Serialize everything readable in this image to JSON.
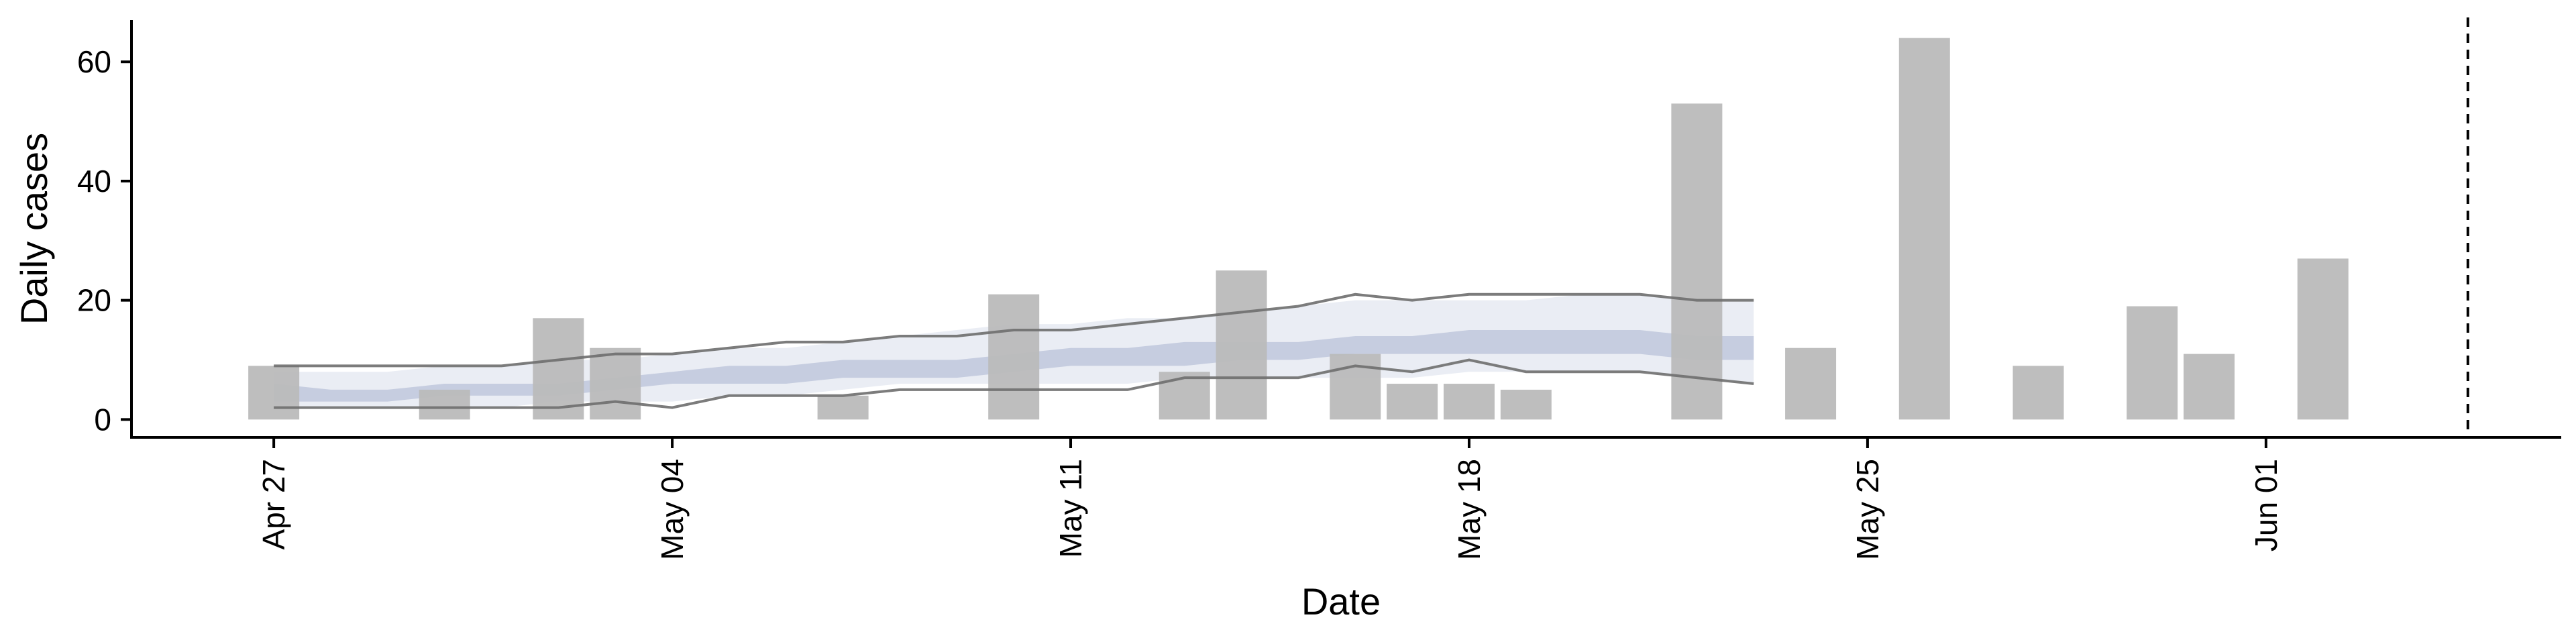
{
  "chart_data": {
    "type": "bar",
    "title": "",
    "xlabel": "Date",
    "ylabel": "Daily cases",
    "ylim": [
      -3,
      67
    ],
    "yticks": [
      0,
      20,
      40,
      60
    ],
    "x_range": [
      "2020-04-25",
      "2020-06-08"
    ],
    "xticks": [
      {
        "date": "2020-04-27",
        "label": "Apr 27"
      },
      {
        "date": "2020-05-04",
        "label": "May 04"
      },
      {
        "date": "2020-05-11",
        "label": "May 11"
      },
      {
        "date": "2020-05-18",
        "label": "May 18"
      },
      {
        "date": "2020-05-25",
        "label": "May 25"
      },
      {
        "date": "2020-06-01",
        "label": "Jun 01"
      }
    ],
    "grid": false,
    "legend": "none",
    "bars": {
      "name": "Daily cases",
      "color": "#bababa",
      "dates": [
        "2020-04-27",
        "2020-04-30",
        "2020-05-02",
        "2020-05-03",
        "2020-05-07",
        "2020-05-10",
        "2020-05-13",
        "2020-05-14",
        "2020-05-16",
        "2020-05-17",
        "2020-05-18",
        "2020-05-19",
        "2020-05-22",
        "2020-05-24",
        "2020-05-26",
        "2020-05-28",
        "2020-05-30",
        "2020-05-31",
        "2020-06-02"
      ],
      "values": [
        9,
        5,
        17,
        12,
        4,
        21,
        8,
        25,
        11,
        6,
        6,
        5,
        53,
        12,
        64,
        9,
        19,
        11,
        27
      ]
    },
    "estimate": {
      "dates": [
        "2020-04-27",
        "2020-04-28",
        "2020-04-29",
        "2020-04-30",
        "2020-05-01",
        "2020-05-02",
        "2020-05-03",
        "2020-05-04",
        "2020-05-05",
        "2020-05-06",
        "2020-05-07",
        "2020-05-08",
        "2020-05-09",
        "2020-05-10",
        "2020-05-11",
        "2020-05-12",
        "2020-05-13",
        "2020-05-14",
        "2020-05-15",
        "2020-05-16",
        "2020-05-17",
        "2020-05-18",
        "2020-05-19",
        "2020-05-20",
        "2020-05-21",
        "2020-05-22",
        "2020-05-23"
      ],
      "outer_lower": [
        2,
        2,
        2,
        2,
        2,
        3,
        3,
        3,
        4,
        4,
        5,
        6,
        6,
        6,
        6,
        6,
        7,
        7,
        7,
        7,
        7,
        8,
        8,
        8,
        8,
        7,
        6
      ],
      "outer_upper": [
        8,
        8,
        8,
        9,
        9,
        10,
        10,
        11,
        12,
        12,
        13,
        14,
        15,
        16,
        16,
        17,
        17,
        18,
        19,
        20,
        20,
        20,
        20,
        21,
        21,
        20,
        20
      ],
      "inner_lower": [
        3,
        3,
        3,
        4,
        4,
        4,
        5,
        6,
        6,
        6,
        7,
        7,
        7,
        8,
        9,
        9,
        9,
        10,
        10,
        11,
        11,
        11,
        11,
        11,
        11,
        10,
        10
      ],
      "inner_upper": [
        6,
        5,
        5,
        6,
        6,
        6,
        7,
        8,
        9,
        9,
        10,
        10,
        10,
        11,
        12,
        12,
        13,
        13,
        13,
        14,
        14,
        15,
        15,
        15,
        15,
        14,
        14
      ],
      "outer_color": "#dfe3ee",
      "inner_color": "#aeb8d2"
    },
    "range_lines": {
      "color": "#6e6e6e",
      "upper": {
        "dates": [
          "2020-04-27",
          "2020-04-28",
          "2020-04-29",
          "2020-04-30",
          "2020-05-01",
          "2020-05-02",
          "2020-05-03",
          "2020-05-04",
          "2020-05-05",
          "2020-05-06",
          "2020-05-07",
          "2020-05-08",
          "2020-05-09",
          "2020-05-10",
          "2020-05-11",
          "2020-05-12",
          "2020-05-13",
          "2020-05-14",
          "2020-05-15",
          "2020-05-16",
          "2020-05-17",
          "2020-05-18",
          "2020-05-19",
          "2020-05-20",
          "2020-05-21",
          "2020-05-22",
          "2020-05-23"
        ],
        "values": [
          9,
          9,
          9,
          9,
          9,
          10,
          11,
          11,
          12,
          13,
          13,
          14,
          14,
          15,
          15,
          16,
          17,
          18,
          19,
          21,
          20,
          21,
          21,
          21,
          21,
          20,
          20
        ]
      },
      "lower": {
        "dates": [
          "2020-04-27",
          "2020-04-28",
          "2020-04-29",
          "2020-04-30",
          "2020-05-01",
          "2020-05-02",
          "2020-05-03",
          "2020-05-04",
          "2020-05-05",
          "2020-05-06",
          "2020-05-07",
          "2020-05-08",
          "2020-05-09",
          "2020-05-10",
          "2020-05-11",
          "2020-05-12",
          "2020-05-13",
          "2020-05-14",
          "2020-05-15",
          "2020-05-16",
          "2020-05-17",
          "2020-05-18",
          "2020-05-19",
          "2020-05-20",
          "2020-05-21",
          "2020-05-22",
          "2020-05-23"
        ],
        "values": [
          2,
          2,
          2,
          2,
          2,
          2,
          3,
          2,
          4,
          4,
          4,
          5,
          5,
          5,
          5,
          5,
          7,
          7,
          7,
          9,
          8,
          10,
          8,
          8,
          8,
          7,
          6
        ]
      }
    },
    "reference_line": {
      "date": "2020-06-05",
      "style": "dashed",
      "color": "#000000"
    }
  }
}
